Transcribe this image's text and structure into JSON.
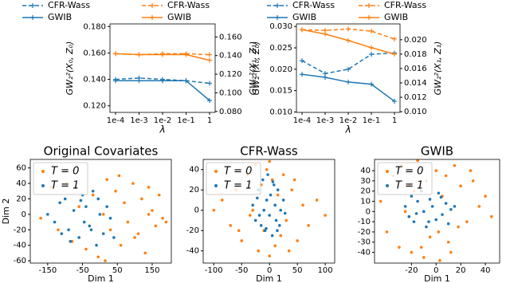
{
  "chart_data": [
    {
      "type": "line",
      "categories": [
        "1e-4",
        "1e-3",
        "1e-2",
        "1e-1",
        "1"
      ],
      "xlabel": "λ",
      "ylabel": "GW₂²(X₀, Z₀)",
      "y2label": "GW₂²(X₁, Z₁)",
      "ylim": [
        0.115,
        0.182
      ],
      "yticks": [
        {
          "value": 0.12,
          "label": "0.120"
        },
        {
          "value": 0.14,
          "label": "0.140"
        },
        {
          "value": 0.16,
          "label": "0.160"
        },
        {
          "value": 0.18,
          "label": "0.180"
        }
      ],
      "y2lim": [
        0.079,
        0.174
      ],
      "y2ticks": [
        {
          "value": 0.08,
          "label": "0.080"
        },
        {
          "value": 0.1,
          "label": "0.100"
        },
        {
          "value": 0.12,
          "label": "0.120"
        },
        {
          "value": 0.14,
          "label": "0.140"
        },
        {
          "value": 0.16,
          "label": "0.160"
        }
      ],
      "series": [
        {
          "name": "CFR-Wass",
          "color": "#1f77b4",
          "style": "dashed",
          "values": [
            0.14,
            0.141,
            0.14,
            0.139,
            0.137
          ]
        },
        {
          "name": "CFR-Wass",
          "color": "#ff7f0e",
          "style": "dashed",
          "axis": "y2",
          "values": [
            0.142,
            0.141,
            0.142,
            0.142,
            0.141
          ]
        },
        {
          "name": "GWIB",
          "color": "#1f77b4",
          "style": "solid",
          "values": [
            0.139,
            0.139,
            0.139,
            0.139,
            0.124
          ]
        },
        {
          "name": "GWIB",
          "color": "#ff7f0e",
          "style": "solid",
          "axis": "y2",
          "values": [
            0.142,
            0.141,
            0.141,
            0.141,
            0.135
          ]
        }
      ]
    },
    {
      "type": "line",
      "categories": [
        "1e-4",
        "1e-3",
        "1e-2",
        "1e-1",
        "1"
      ],
      "xlabel": "λ",
      "ylabel": "GW₂²(X₀, Z₀)",
      "y2label": "GW₂²(X₁, Z₁)",
      "ylim": [
        0.0099,
        0.0306
      ],
      "yticks": [
        {
          "value": 0.01,
          "label": "0.010"
        },
        0.015,
        {
          "value": 0.02,
          "label": "0.020"
        },
        0.025,
        {
          "value": 0.03,
          "label": "0.030"
        }
      ],
      "y2lim": [
        0.0099,
        0.0222
      ],
      "y2ticks": [
        {
          "value": 0.01,
          "label": "0.010"
        },
        0.012,
        0.014,
        0.016,
        0.018,
        {
          "value": 0.02,
          "label": "0.020"
        }
      ],
      "series": [
        {
          "name": "CFR-Wass",
          "color": "#1f77b4",
          "style": "dashed",
          "values": [
            0.022,
            0.019,
            0.02,
            0.0235,
            0.0238
          ]
        },
        {
          "name": "CFR-Wass",
          "color": "#ff7f0e",
          "style": "dashed",
          "axis": "y2",
          "values": [
            0.0214,
            0.0213,
            0.0215,
            0.0212,
            0.0201
          ]
        },
        {
          "name": "GWIB",
          "color": "#1f77b4",
          "style": "solid",
          "values": [
            0.0188,
            0.0181,
            0.017,
            0.0165,
            0.0125
          ]
        },
        {
          "name": "GWIB",
          "color": "#ff7f0e",
          "style": "solid",
          "axis": "y2",
          "values": [
            0.0214,
            0.0208,
            0.0199,
            0.0189,
            0.018
          ]
        }
      ]
    },
    {
      "type": "scatter",
      "title": "Original Covariates",
      "xlabel": "Dim 1",
      "ylabel": "Dim 2",
      "legend": "upper left",
      "xlim": [
        -200,
        205
      ],
      "xticks": [
        -150,
        -50,
        50,
        150
      ],
      "ylim": [
        -63,
        71
      ],
      "yticks": [
        -60,
        -40,
        -20,
        0,
        20,
        40,
        60
      ],
      "series": [
        {
          "name": "T = 0",
          "color": "#ff7f0e",
          "x": [
            -170,
            -140,
            -120,
            -95,
            -80,
            -60,
            -40,
            -20,
            -5,
            10,
            20,
            30,
            45,
            60,
            70,
            80,
            95,
            110,
            120,
            130,
            140,
            150,
            160,
            170,
            180,
            190,
            15,
            55,
            100,
            140
          ],
          "values": [
            -5,
            35,
            -20,
            40,
            -35,
            10,
            -45,
            25,
            -55,
            0,
            45,
            -20,
            30,
            -40,
            15,
            -10,
            40,
            -25,
            20,
            -50,
            35,
            5,
            -15,
            25,
            -5,
            -10,
            -60,
            50,
            -30,
            0
          ]
        },
        {
          "name": "T = 1",
          "color": "#1f77b4",
          "x": [
            -150,
            -130,
            -115,
            -100,
            -90,
            -75,
            -60,
            -50,
            -40,
            -30,
            -20,
            -10,
            0,
            10,
            20,
            30,
            -110,
            -70,
            -45,
            -5,
            40,
            -85,
            -55,
            -25
          ],
          "values": [
            0,
            -10,
            15,
            20,
            -20,
            5,
            -30,
            25,
            10,
            -15,
            30,
            -40,
            0,
            -25,
            10,
            -5,
            -25,
            35,
            -10,
            20,
            -30,
            -35,
            18,
            -20
          ]
        }
      ]
    },
    {
      "type": "scatter",
      "title": "CFR-Wass",
      "xlabel": "Dim 1",
      "legend": "upper left",
      "xlim": [
        -119,
        117
      ],
      "xticks": [
        -100,
        -50,
        0,
        50,
        100
      ],
      "ylim": [
        -52,
        50
      ],
      "yticks": [
        -40,
        -20,
        0,
        20,
        40
      ],
      "series": [
        {
          "name": "T = 0",
          "color": "#ff7f0e",
          "x": [
            -100,
            -85,
            -70,
            -60,
            -50,
            -40,
            -35,
            -25,
            -20,
            -15,
            -10,
            -5,
            0,
            5,
            10,
            15,
            20,
            25,
            30,
            40,
            50,
            60,
            70,
            85,
            100,
            -55,
            45,
            -30,
            35,
            0
          ],
          "values": [
            0,
            10,
            -15,
            20,
            -30,
            35,
            -5,
            45,
            -40,
            25,
            -20,
            40,
            -45,
            30,
            -35,
            15,
            -25,
            35,
            -10,
            20,
            -30,
            5,
            -15,
            10,
            -5,
            -20,
            30,
            0,
            -40,
            48
          ]
        },
        {
          "name": "T = 1",
          "color": "#1f77b4",
          "x": [
            -30,
            -25,
            -20,
            -15,
            -12,
            -10,
            -8,
            -5,
            -3,
            0,
            2,
            5,
            8,
            10,
            12,
            15,
            18,
            20,
            25,
            -18,
            -6,
            6,
            14,
            -22,
            28
          ],
          "values": [
            5,
            -10,
            20,
            -15,
            30,
            0,
            -20,
            10,
            35,
            -5,
            15,
            -25,
            25,
            5,
            -10,
            20,
            -15,
            0,
            10,
            -5,
            -18,
            28,
            -20,
            12,
            -3
          ]
        }
      ]
    },
    {
      "type": "scatter",
      "title": "GWIB",
      "xlabel": "Dim 1",
      "legend": "upper left",
      "xlim": [
        -50,
        51.6
      ],
      "xticks": [
        -20,
        0,
        20,
        40
      ],
      "ylim": [
        -50.5,
        51
      ],
      "yticks": [
        -40,
        -30,
        -20,
        -10,
        0,
        10,
        20,
        30,
        40
      ],
      "series": [
        {
          "name": "T = 0",
          "color": "#ff7f0e",
          "x": [
            -45,
            -40,
            -35,
            -30,
            -28,
            -25,
            -20,
            -18,
            -15,
            -10,
            -8,
            -5,
            0,
            3,
            5,
            8,
            10,
            15,
            18,
            20,
            25,
            30,
            35,
            40,
            45,
            -12,
            12,
            -22,
            28,
            2
          ],
          "values": [
            10,
            -20,
            35,
            -35,
            45,
            0,
            -40,
            20,
            50,
            -45,
            30,
            -25,
            40,
            -48,
            15,
            35,
            -30,
            45,
            -15,
            25,
            -10,
            30,
            5,
            15,
            -5,
            -35,
            -40,
            25,
            40,
            -20
          ]
        },
        {
          "name": "T = 1",
          "color": "#1f77b4",
          "x": [
            -25,
            -22,
            -20,
            -18,
            -15,
            -12,
            -10,
            -8,
            -5,
            -3,
            0,
            2,
            5,
            8,
            10,
            12,
            15,
            -16,
            -6,
            4
          ],
          "values": [
            5,
            -5,
            15,
            -10,
            10,
            20,
            0,
            -15,
            12,
            5,
            -8,
            18,
            -3,
            8,
            -12,
            2,
            5,
            -2,
            -10,
            14
          ]
        }
      ]
    }
  ]
}
